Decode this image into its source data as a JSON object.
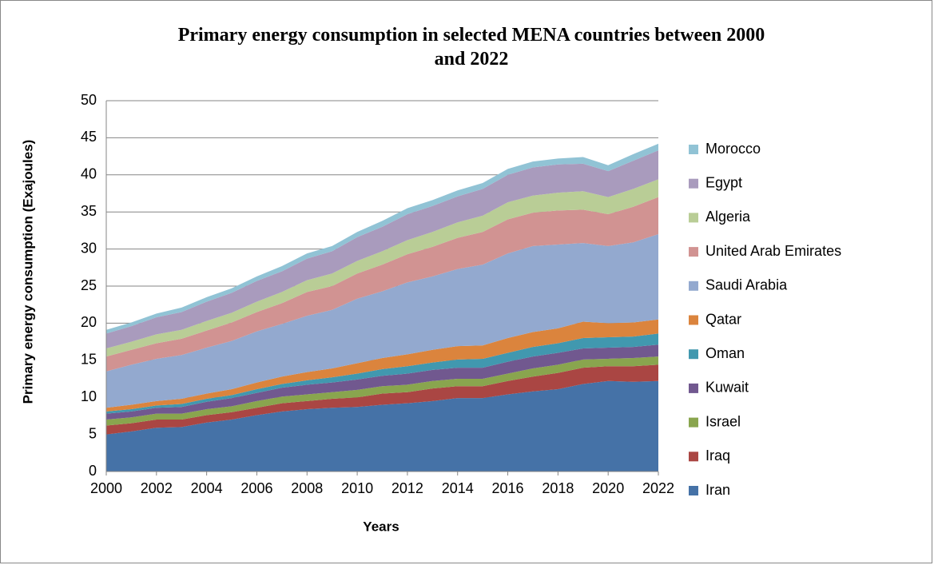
{
  "chart_data": {
    "type": "stacked_area",
    "title": "Primary energy consumption in selected MENA countries between 2000 and 2022",
    "x_label": "Years",
    "y_label": "Primary energy consumption (Exajoules)",
    "x": [
      2000,
      2001,
      2002,
      2003,
      2004,
      2005,
      2006,
      2007,
      2008,
      2009,
      2010,
      2011,
      2012,
      2013,
      2014,
      2015,
      2016,
      2017,
      2018,
      2019,
      2020,
      2021,
      2022
    ],
    "xlim": [
      2000,
      2022
    ],
    "xticks": [
      2000,
      2002,
      2004,
      2006,
      2008,
      2010,
      2012,
      2014,
      2016,
      2018,
      2020,
      2022
    ],
    "ylim": [
      0,
      50
    ],
    "yticks": [
      0,
      5,
      10,
      15,
      20,
      25,
      30,
      35,
      40,
      45,
      50
    ],
    "grid": true,
    "legend": "right",
    "series": [
      {
        "name": "Iran",
        "color": "#4572a7",
        "values": [
          5.0,
          5.4,
          5.9,
          6.0,
          6.6,
          7.0,
          7.6,
          8.1,
          8.4,
          8.6,
          8.7,
          9.0,
          9.2,
          9.5,
          9.9,
          9.9,
          10.4,
          10.8,
          11.1,
          11.8,
          12.2,
          12.1,
          12.2
        ]
      },
      {
        "name": "Iraq",
        "color": "#aa4643",
        "values": [
          1.2,
          1.1,
          1.1,
          1.0,
          1.0,
          1.0,
          1.0,
          1.1,
          1.1,
          1.2,
          1.3,
          1.5,
          1.5,
          1.7,
          1.6,
          1.6,
          1.8,
          2.0,
          2.2,
          2.2,
          2.0,
          2.1,
          2.2
        ]
      },
      {
        "name": "Israel",
        "color": "#89a54e",
        "values": [
          0.8,
          0.8,
          0.8,
          0.8,
          0.8,
          0.8,
          0.9,
          0.9,
          0.9,
          0.9,
          1.0,
          1.0,
          1.0,
          1.0,
          1.0,
          1.0,
          1.0,
          1.1,
          1.1,
          1.1,
          1.0,
          1.1,
          1.1
        ]
      },
      {
        "name": "Kuwait",
        "color": "#71588f",
        "values": [
          0.8,
          0.8,
          0.8,
          0.9,
          1.0,
          1.1,
          1.1,
          1.2,
          1.3,
          1.3,
          1.4,
          1.4,
          1.5,
          1.5,
          1.5,
          1.5,
          1.6,
          1.6,
          1.6,
          1.5,
          1.5,
          1.5,
          1.6
        ]
      },
      {
        "name": "Oman",
        "color": "#4198af",
        "values": [
          0.3,
          0.3,
          0.3,
          0.4,
          0.4,
          0.4,
          0.5,
          0.5,
          0.6,
          0.7,
          0.8,
          0.9,
          1.0,
          1.0,
          1.1,
          1.2,
          1.2,
          1.3,
          1.3,
          1.4,
          1.4,
          1.4,
          1.5
        ]
      },
      {
        "name": "Qatar",
        "color": "#db843d",
        "values": [
          0.5,
          0.6,
          0.6,
          0.7,
          0.7,
          0.8,
          0.9,
          1.0,
          1.1,
          1.2,
          1.4,
          1.5,
          1.6,
          1.7,
          1.8,
          1.8,
          2.0,
          2.0,
          2.0,
          2.2,
          1.9,
          1.9,
          1.9
        ]
      },
      {
        "name": "Saudi Arabia",
        "color": "#93a9cf",
        "values": [
          4.9,
          5.4,
          5.7,
          5.9,
          6.2,
          6.5,
          6.9,
          7.1,
          7.6,
          7.9,
          8.7,
          9.0,
          9.7,
          9.9,
          10.4,
          10.9,
          11.4,
          11.6,
          11.3,
          10.6,
          10.4,
          10.8,
          11.5
        ]
      },
      {
        "name": "United Arab Emirates",
        "color": "#d19392",
        "values": [
          2.0,
          2.0,
          2.1,
          2.2,
          2.3,
          2.5,
          2.6,
          2.8,
          3.2,
          3.2,
          3.4,
          3.6,
          3.8,
          4.0,
          4.2,
          4.4,
          4.6,
          4.5,
          4.6,
          4.5,
          4.3,
          4.8,
          5.0
        ]
      },
      {
        "name": "Algeria",
        "color": "#b9cd96",
        "values": [
          1.1,
          1.1,
          1.2,
          1.2,
          1.3,
          1.3,
          1.4,
          1.5,
          1.6,
          1.7,
          1.7,
          1.8,
          1.9,
          2.0,
          2.1,
          2.2,
          2.3,
          2.3,
          2.4,
          2.5,
          2.3,
          2.4,
          2.4
        ]
      },
      {
        "name": "Egypt",
        "color": "#a99bbd",
        "values": [
          2.0,
          2.1,
          2.3,
          2.4,
          2.6,
          2.7,
          2.8,
          2.8,
          2.9,
          3.0,
          3.2,
          3.3,
          3.5,
          3.5,
          3.5,
          3.6,
          3.7,
          3.8,
          3.8,
          3.7,
          3.5,
          3.8,
          3.9
        ]
      },
      {
        "name": "Morocco",
        "color": "#91c3d5",
        "values": [
          0.5,
          0.5,
          0.5,
          0.6,
          0.6,
          0.6,
          0.6,
          0.7,
          0.7,
          0.7,
          0.7,
          0.8,
          0.8,
          0.8,
          0.8,
          0.8,
          0.8,
          0.8,
          0.8,
          0.9,
          0.8,
          0.9,
          0.9
        ]
      }
    ]
  }
}
